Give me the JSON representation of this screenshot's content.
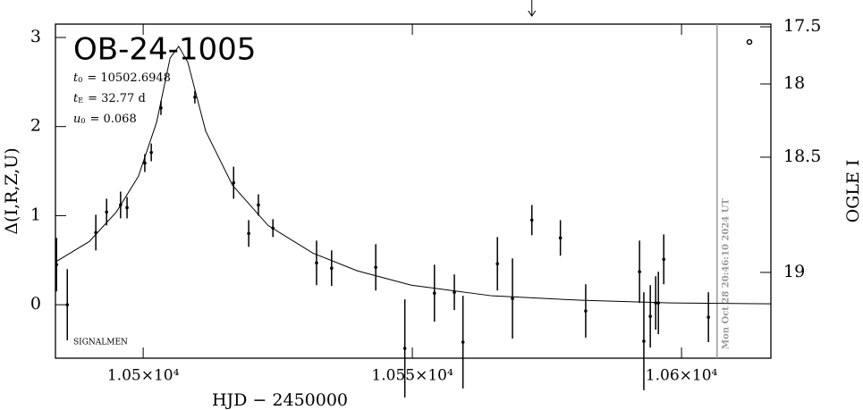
{
  "chart_data": {
    "type": "scatter",
    "title": "OB-24-1005",
    "params": [
      {
        "symbol": "t",
        "sub": "0",
        "text": "= 10502.6948"
      },
      {
        "symbol": "t",
        "sub": "E",
        "text": "= 32.77 d"
      },
      {
        "symbol": "u",
        "sub": "0",
        "text": "= 0.068"
      }
    ],
    "credit": "SIGNALMEN",
    "timestamp": "Mon Oct 28 20:46:10 2024 UT",
    "x_label": "HJD − 2450000",
    "y_label": "Δ(I,R,Z,U)",
    "y2_label": "OGLE I",
    "xlim": [
      10483.7,
      10616.6
    ],
    "ylim": [
      -0.6,
      3.15
    ],
    "xticks": [
      {
        "value": 10500,
        "label": "1.05×10⁴"
      },
      {
        "value": 10550,
        "label": "1.055×10⁴"
      },
      {
        "value": 10600,
        "label": "1.06×10⁴"
      }
    ],
    "yticks": [
      0,
      1,
      2,
      3
    ],
    "y2ticks": [
      17.5,
      18,
      18.5,
      19
    ],
    "color": "#000000",
    "now_line_x": 10606.6,
    "now_line_color": "#999999",
    "arrow_x": 10572.2,
    "x": [
      10483.9,
      10485.9,
      10491.2,
      10493.2,
      10495.8,
      10497.0,
      10500.3,
      10501.5,
      10503.3,
      10509.6,
      10516.8,
      10519.6,
      10521.4,
      10524.1,
      10532.2,
      10535.0,
      10543.2,
      10548.6,
      10554.1,
      10557.8,
      10559.4,
      10565.8,
      10568.6,
      10572.2,
      10577.5,
      10582.2,
      10592.2,
      10593.0,
      10594.2,
      10595.2,
      10595.7,
      10596.7,
      10605.0
    ],
    "values": [
      0.45,
      0.0,
      0.81,
      1.04,
      1.12,
      1.09,
      1.59,
      1.71,
      2.21,
      2.33,
      1.37,
      0.8,
      1.12,
      0.86,
      0.47,
      0.41,
      0.42,
      -0.49,
      0.13,
      0.14,
      -0.42,
      0.46,
      0.07,
      0.95,
      0.75,
      -0.07,
      0.37,
      -0.41,
      -0.13,
      0.02,
      0.02,
      0.51,
      -0.14
    ],
    "errors": [
      0.3,
      0.4,
      0.2,
      0.15,
      0.15,
      0.12,
      0.1,
      0.1,
      0.08,
      0.07,
      0.18,
      0.15,
      0.12,
      0.1,
      0.25,
      0.2,
      0.26,
      0.55,
      0.32,
      0.2,
      0.52,
      0.3,
      0.45,
      0.17,
      0.2,
      0.3,
      0.35,
      0.55,
      0.35,
      0.3,
      0.35,
      0.28,
      0.28
    ],
    "model": {
      "x": [
        10483.7,
        10490.0,
        10495.0,
        10499.1,
        10502.5,
        10505.0,
        10506.6,
        10508.3,
        10511.6,
        10516.6,
        10523.2,
        10531.5,
        10539.8,
        10549.8,
        10564.8,
        10581.4,
        10598.0,
        10616.6
      ],
      "values": [
        0.48,
        0.71,
        1.04,
        1.44,
        2.05,
        2.77,
        2.9,
        2.72,
        1.95,
        1.34,
        0.89,
        0.58,
        0.38,
        0.22,
        0.1,
        0.05,
        0.02,
        0.01
      ]
    }
  }
}
